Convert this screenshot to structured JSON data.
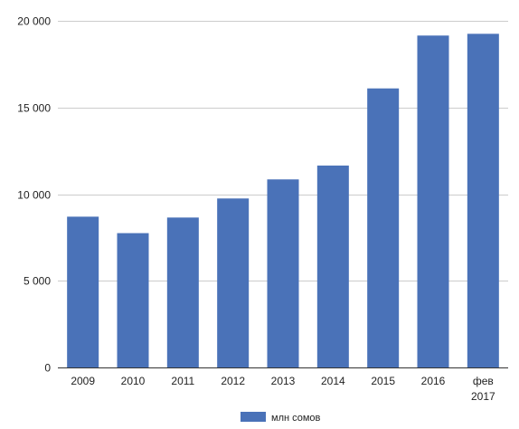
{
  "chart_data": {
    "type": "bar",
    "categories": [
      "2009",
      "2010",
      "2011",
      "2012",
      "2013",
      "2014",
      "2015",
      "2016",
      "фев 2017"
    ],
    "series": [
      {
        "name": "млн сомов",
        "color": "#4a72b8",
        "values": [
          8700,
          7750,
          8650,
          9750,
          10850,
          11650,
          16100,
          19150,
          19250
        ]
      }
    ],
    "y_ticks": [
      "0",
      "5 000",
      "10 000",
      "15 000",
      "20 000"
    ],
    "y_tick_values": [
      0,
      5000,
      10000,
      15000,
      20000
    ],
    "ylim": [
      0,
      20000
    ],
    "grid": true,
    "legend_position": "bottom"
  }
}
